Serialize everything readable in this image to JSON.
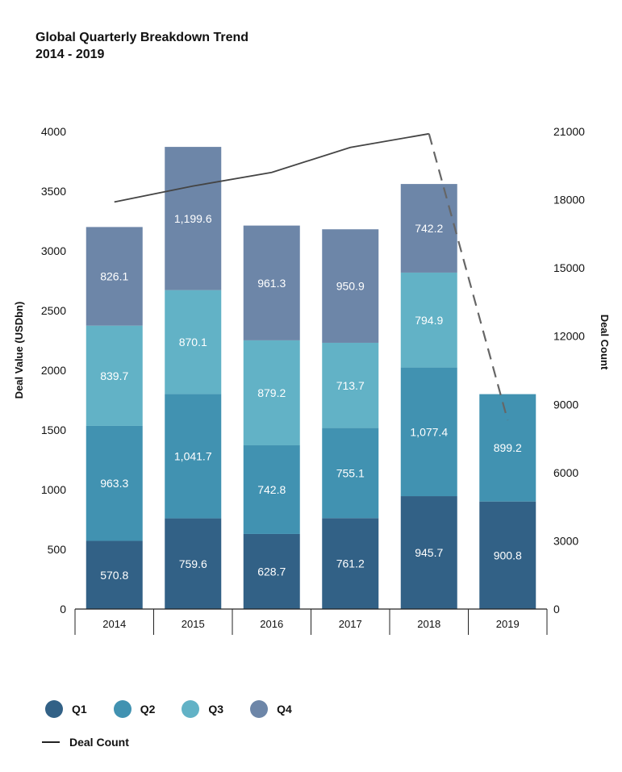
{
  "title": "Global Quarterly Breakdown Trend",
  "subtitle": "2014 - 2019",
  "colors": {
    "Q1": "#326186",
    "Q2": "#4192b1",
    "Q3": "#62b2c6",
    "Q4": "#6d86a8",
    "line": "#444444"
  },
  "legend": {
    "q1": "Q1",
    "q2": "Q2",
    "q3": "Q3",
    "q4": "Q4",
    "deal_count": "Deal Count"
  },
  "chart_data": {
    "type": "bar",
    "stacked": true,
    "categories": [
      "2014",
      "2015",
      "2016",
      "2017",
      "2018",
      "2019"
    ],
    "series": [
      {
        "name": "Q1",
        "values": [
          570.8,
          759.6,
          628.7,
          761.2,
          945.7,
          900.8
        ],
        "labels": [
          "570.8",
          "759.6",
          "628.7",
          "761.2",
          "945.7",
          "900.8"
        ]
      },
      {
        "name": "Q2",
        "values": [
          963.3,
          1041.7,
          742.8,
          755.1,
          1077.4,
          899.2
        ],
        "labels": [
          "963.3",
          "1,041.7",
          "742.8",
          "755.1",
          "1,077.4",
          "899.2"
        ]
      },
      {
        "name": "Q3",
        "values": [
          839.7,
          870.1,
          879.2,
          713.7,
          794.9,
          null
        ],
        "labels": [
          "839.7",
          "870.1",
          "879.2",
          "713.7",
          "794.9",
          ""
        ]
      },
      {
        "name": "Q4",
        "values": [
          826.1,
          1199.6,
          961.3,
          950.9,
          742.2,
          null
        ],
        "labels": [
          "826.1",
          "1,199.6",
          "961.3",
          "950.9",
          "742.2",
          ""
        ]
      }
    ],
    "line_series": {
      "name": "Deal Count",
      "axis": "right",
      "values": [
        17900,
        18600,
        19200,
        20300,
        20900,
        8300
      ],
      "dashed_last_segment": true
    },
    "ylabel": "Deal Value (USDbn)",
    "y2label": "Deal Count",
    "ylim": [
      0,
      4000
    ],
    "y2lim": [
      0,
      21000
    ],
    "yticks": [
      "0",
      "500",
      "1000",
      "1500",
      "2000",
      "2500",
      "3000",
      "3500",
      "4000"
    ],
    "y2ticks": [
      "0",
      "3000",
      "6000",
      "9000",
      "12000",
      "15000",
      "18000",
      "21000"
    ],
    "grid": false,
    "legend_position": "bottom-left"
  }
}
